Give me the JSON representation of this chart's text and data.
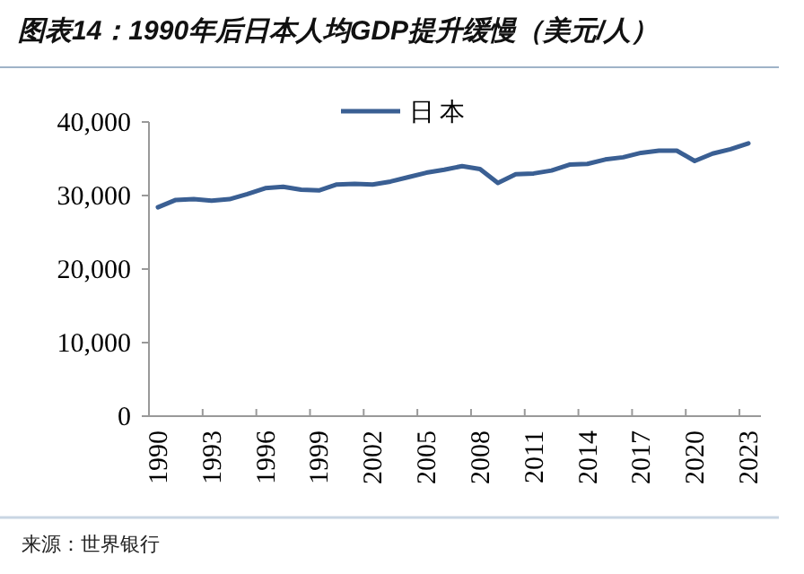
{
  "chart_data": {
    "type": "line",
    "title": "图表14：1990年后日本人均GDP提升缓慢（美元/人）",
    "categories": [
      "1990",
      null,
      null,
      "1993",
      null,
      null,
      "1996",
      null,
      null,
      "1999",
      null,
      null,
      "2002",
      null,
      null,
      "2005",
      null,
      null,
      "2008",
      null,
      null,
      "2011",
      null,
      null,
      "2014",
      null,
      null,
      "2017",
      null,
      null,
      "2020",
      null,
      null,
      "2023"
    ],
    "series": [
      {
        "name": "日本",
        "color": "#3a5f93",
        "values": [
          28400,
          29400,
          29500,
          29300,
          29500,
          30200,
          31000,
          31200,
          30800,
          30700,
          31500,
          31600,
          31500,
          31900,
          32500,
          33100,
          33500,
          34000,
          33600,
          31700,
          32900,
          33000,
          33400,
          34200,
          34300,
          34900,
          35200,
          35800,
          36100,
          36100,
          34700,
          35700,
          36300,
          37100
        ]
      }
    ],
    "ylim": [
      0,
      40000
    ],
    "yticks": [
      {
        "value": 0,
        "label": "0"
      },
      {
        "value": 10000,
        "label": "10,000"
      },
      {
        "value": 20000,
        "label": "20,000"
      },
      {
        "value": 30000,
        "label": "30,000"
      },
      {
        "value": 40000,
        "label": "40,000"
      }
    ],
    "legend": "top",
    "grid": false,
    "marker": "none",
    "line_style": "solid",
    "annotations": [
      "来源：世界银行"
    ]
  }
}
